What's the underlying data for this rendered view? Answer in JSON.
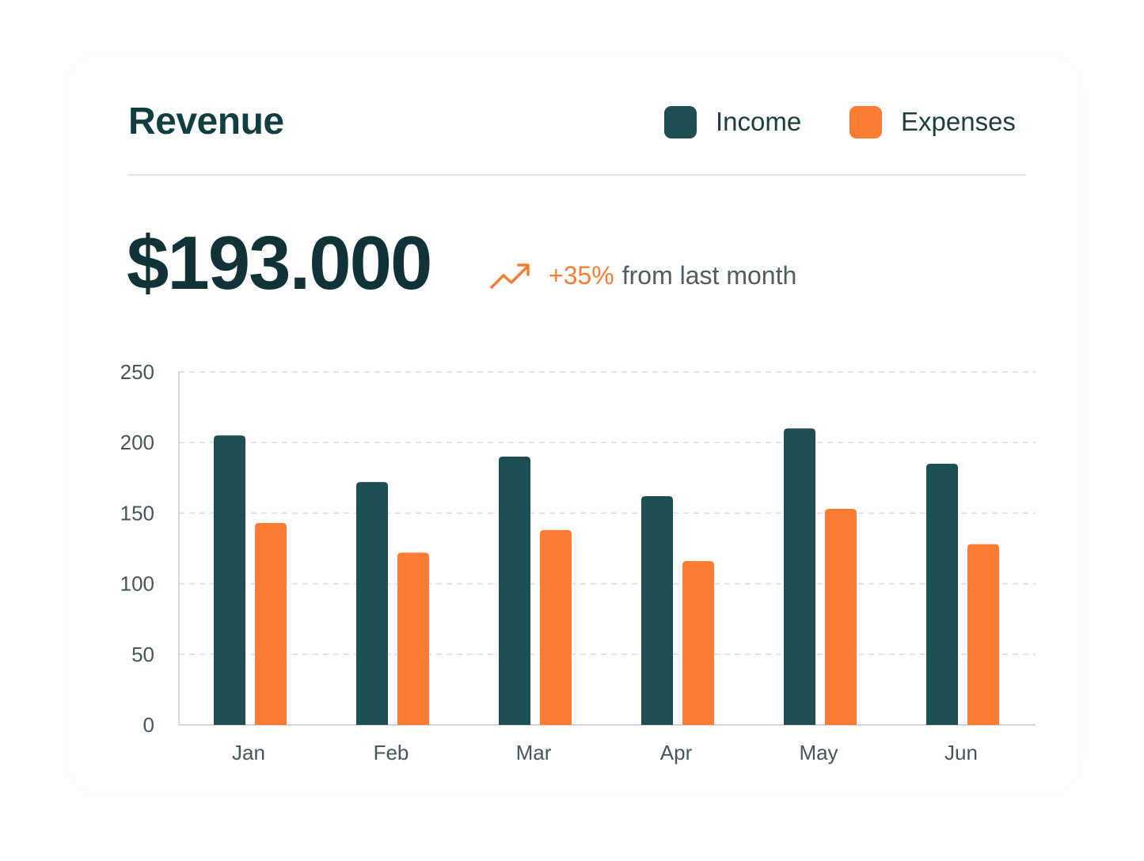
{
  "header": {
    "title": "Revenue"
  },
  "legend": [
    {
      "label": "Income",
      "color": "#1d4e52"
    },
    {
      "label": "Expenses",
      "color": "#fe7b33"
    }
  ],
  "summary": {
    "value": "$193.000",
    "change": "+35%",
    "change_suffix": "from last month",
    "trend_icon": "trending-up-icon"
  },
  "chart_data": {
    "type": "bar",
    "categories": [
      "Jan",
      "Feb",
      "Mar",
      "Apr",
      "May",
      "Jun"
    ],
    "series": [
      {
        "name": "Income",
        "color": "#1d4e52",
        "values": [
          205,
          172,
          190,
          162,
          210,
          185
        ]
      },
      {
        "name": "Expenses",
        "color": "#fe7b33",
        "values": [
          143,
          122,
          138,
          116,
          153,
          128
        ]
      }
    ],
    "ylim": [
      0,
      250
    ],
    "yticks": [
      0,
      50,
      100,
      150,
      200,
      250
    ],
    "grid": true,
    "legend_position": "top-right",
    "title": "",
    "xlabel": "",
    "ylabel": ""
  }
}
